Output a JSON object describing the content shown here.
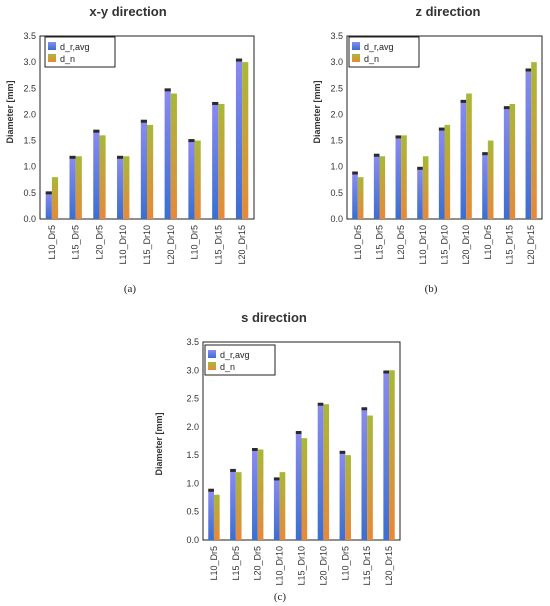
{
  "chart_data": [
    {
      "type": "bar",
      "panel_label": "(a)",
      "title": "x-y direction",
      "ylabel": "Diameter [mm]",
      "xlabel": "",
      "ylim": [
        0,
        3.5
      ],
      "yticks": [
        "0.0",
        "0.5",
        "1.0",
        "1.5",
        "2.0",
        "2.5",
        "3.0",
        "3.5"
      ],
      "categories": [
        "L10_Dr5",
        "L15_Dr5",
        "L20_Dr5",
        "L10_Dr10",
        "L15_Dr10",
        "L20_Dr10",
        "L10_Dr5",
        "L15_Dr15",
        "L20_Dr15"
      ],
      "series": [
        {
          "name": "d_r,avg",
          "values": [
            0.5,
            1.18,
            1.68,
            1.18,
            1.87,
            2.47,
            1.5,
            2.21,
            3.04
          ]
        },
        {
          "name": "d_n",
          "values": [
            0.8,
            1.2,
            1.6,
            1.2,
            1.8,
            2.4,
            1.5,
            2.2,
            3.0
          ]
        }
      ],
      "legend": "top-left",
      "grid": false
    },
    {
      "type": "bar",
      "panel_label": "(b)",
      "title": "z direction",
      "ylabel": "Diameter [mm]",
      "xlabel": "",
      "ylim": [
        0,
        3.5
      ],
      "yticks": [
        "0.0",
        "0.5",
        "1.0",
        "1.5",
        "2.0",
        "2.5",
        "3.0",
        "3.5"
      ],
      "categories": [
        "L10_Dr5",
        "L15_Dr5",
        "L20_Dr5",
        "L10_Dr10",
        "L15_Dr10",
        "L20_Dr10",
        "L10_Dr5",
        "L15_Dr15",
        "L20_Dr15"
      ],
      "series": [
        {
          "name": "d_r,avg",
          "values": [
            0.88,
            1.22,
            1.57,
            0.97,
            1.72,
            2.25,
            1.25,
            2.13,
            2.85
          ]
        },
        {
          "name": "d_n",
          "values": [
            0.8,
            1.2,
            1.6,
            1.2,
            1.8,
            2.4,
            1.5,
            2.2,
            3.0
          ]
        }
      ],
      "legend": "top-left",
      "grid": false
    },
    {
      "type": "bar",
      "panel_label": "(c)",
      "title": "s direction",
      "ylabel": "Diameter [mm]",
      "xlabel": "",
      "ylim": [
        0,
        3.5
      ],
      "yticks": [
        "0.0",
        "0.5",
        "1.0",
        "1.5",
        "2.0",
        "2.5",
        "3.0",
        "3.5"
      ],
      "categories": [
        "L10_Dr5",
        "L15_Dr5",
        "L20_Dr5",
        "L10_Dr10",
        "L15_Dr10",
        "L20_Dr10",
        "L10_Dr5",
        "L15_Dr15",
        "L20_Dr15"
      ],
      "series": [
        {
          "name": "d_r,avg",
          "values": [
            0.88,
            1.23,
            1.6,
            1.08,
            1.9,
            2.4,
            1.55,
            2.32,
            2.97
          ]
        },
        {
          "name": "d_n",
          "values": [
            0.8,
            1.2,
            1.6,
            1.2,
            1.8,
            2.4,
            1.5,
            2.2,
            3.0
          ]
        }
      ],
      "legend": "top-left",
      "grid": false
    }
  ],
  "colors": {
    "series_1_top": "#8a8af0",
    "series_1_bottom": "#3a6fd0",
    "series_2_top": "#a8b838",
    "series_2_bottom": "#e8883a",
    "error_bar": "#222222",
    "axis": "#333333"
  }
}
